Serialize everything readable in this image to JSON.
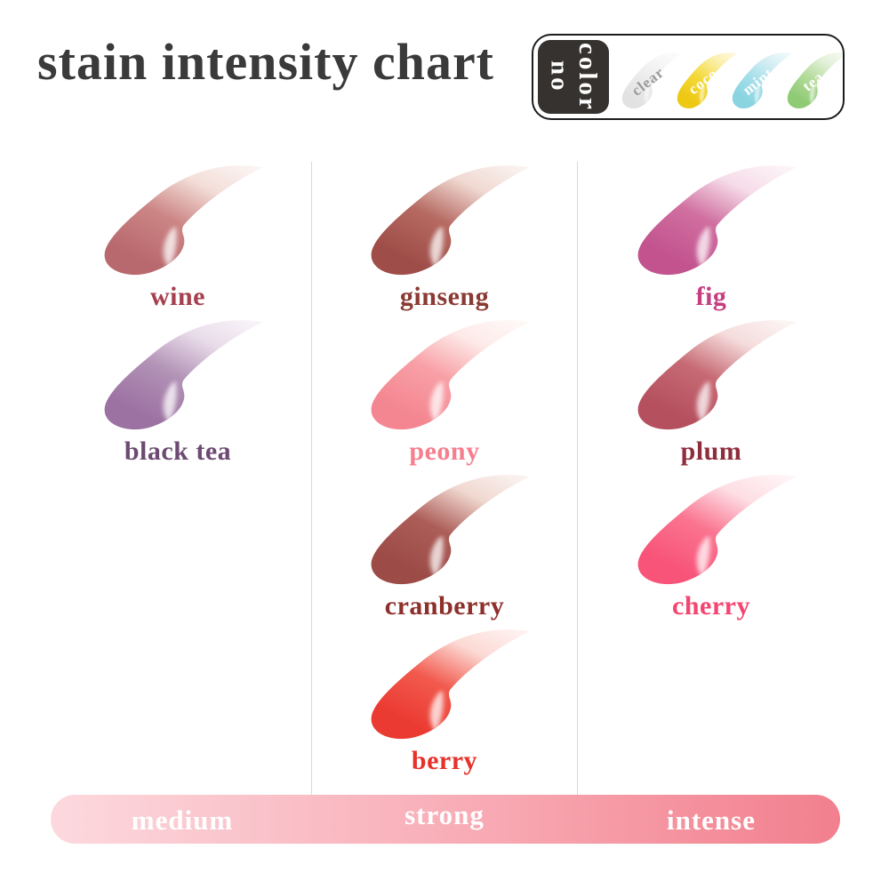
{
  "title": "stain intensity chart",
  "no_color_box": {
    "lines": [
      "no",
      "color"
    ],
    "tab_bg": "#35322f",
    "tab_text_color": "#ffffff",
    "swatches": [
      {
        "name": "clear",
        "label_color": "#9b9b9b",
        "tail": "#f6f6f6",
        "mid": "#ececec",
        "dark": "#e2e2e2"
      },
      {
        "name": "coco",
        "label_color": "#ffffff",
        "tail": "#faeda0",
        "mid": "#f3d93a",
        "dark": "#eec914"
      },
      {
        "name": "mint",
        "label_color": "#ffffff",
        "tail": "#d6eff4",
        "mid": "#a9e0ea",
        "dark": "#89d4e0"
      },
      {
        "name": "tea",
        "label_color": "#ffffff",
        "tail": "#e2f0d8",
        "mid": "#b4dc9c",
        "dark": "#8fca74"
      }
    ]
  },
  "columns": [
    {
      "intensity": "medium",
      "swatches": [
        {
          "name": "wine",
          "label_color": "#a6404f",
          "tail": "#f3ded9",
          "mid": "#cc8685",
          "dark": "#b8696e"
        },
        {
          "name": "black tea",
          "label_color": "#6d4a72",
          "tail": "#e9dcea",
          "mid": "#b292b6",
          "dark": "#9c72a2"
        }
      ]
    },
    {
      "intensity": "strong",
      "swatches": [
        {
          "name": "ginseng",
          "label_color": "#8a3a32",
          "tail": "#f0d9d2",
          "mid": "#b66a62",
          "dark": "#9f4d48"
        },
        {
          "name": "peony",
          "label_color": "#f57f8e",
          "tail": "#fdeae8",
          "mid": "#f8a0a6",
          "dark": "#f48691"
        },
        {
          "name": "cranberry",
          "label_color": "#8d2f2b",
          "tail": "#f0d8d0",
          "mid": "#ad5d58",
          "dark": "#9c4b47"
        },
        {
          "name": "berry",
          "label_color": "#e73129",
          "tail": "#fcd9d4",
          "mid": "#f25a4e",
          "dark": "#ea3a31"
        }
      ]
    },
    {
      "intensity": "intense",
      "swatches": [
        {
          "name": "fig",
          "label_color": "#c43e80",
          "tail": "#f6dde9",
          "mid": "#d06fa0",
          "dark": "#c2538e"
        },
        {
          "name": "plum",
          "label_color": "#8f2d3c",
          "tail": "#f5dcdc",
          "mid": "#c76a74",
          "dark": "#b5505f"
        },
        {
          "name": "cherry",
          "label_color": "#f54470",
          "tail": "#fddee4",
          "mid": "#fa7490",
          "dark": "#f85379"
        }
      ]
    }
  ],
  "intensity_bar": {
    "labels": [
      "medium",
      "strong",
      "intense"
    ],
    "gradient_start": "#fcd9de",
    "gradient_mid": "#f8aab4",
    "gradient_end": "#f27f8d",
    "text_color": "#ffffff"
  },
  "chart_data": {
    "type": "table",
    "title": "stain intensity chart",
    "columns": [
      "medium",
      "strong",
      "intense"
    ],
    "groups": [
      {
        "intensity": "medium",
        "shades": [
          "wine",
          "black tea"
        ]
      },
      {
        "intensity": "strong",
        "shades": [
          "ginseng",
          "peony",
          "cranberry",
          "berry"
        ]
      },
      {
        "intensity": "intense",
        "shades": [
          "fig",
          "plum",
          "cherry"
        ]
      }
    ],
    "no_color_shades": [
      "clear",
      "coco",
      "mint",
      "tea"
    ],
    "shade_colors": {
      "wine": "#b8696e",
      "black tea": "#9c72a2",
      "ginseng": "#9f4d48",
      "peony": "#f48691",
      "cranberry": "#9c4b47",
      "berry": "#ea3a31",
      "fig": "#c2538e",
      "plum": "#b5505f",
      "cherry": "#f85379",
      "clear": "#ececec",
      "coco": "#f3d93a",
      "mint": "#a9e0ea",
      "tea": "#b4dc9c"
    }
  }
}
